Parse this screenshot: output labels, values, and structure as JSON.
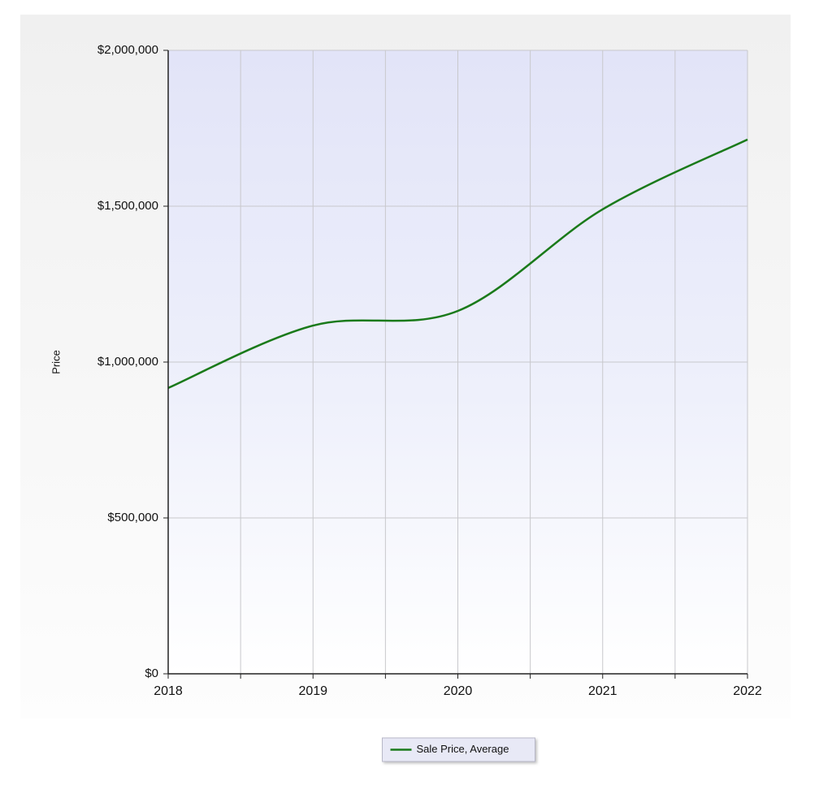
{
  "chart_data": {
    "type": "line",
    "ylabel": "Price",
    "x": [
      2018,
      2019,
      2020,
      2021,
      2022
    ],
    "series": [
      {
        "name": "Sale Price, Average",
        "color": "#1a7a1a",
        "values": [
          917000,
          1117000,
          1164000,
          1490000,
          1714000
        ]
      }
    ],
    "xlim": [
      2018,
      2022
    ],
    "xticks": [
      2018,
      2019,
      2020,
      2021,
      2022
    ],
    "ylim": [
      0,
      2000000
    ],
    "yticks": [
      {
        "value": 0,
        "label": "$0"
      },
      {
        "value": 500000,
        "label": "$500,000"
      },
      {
        "value": 1000000,
        "label": "$1,000,000"
      },
      {
        "value": 1500000,
        "label": "$1,500,000"
      },
      {
        "value": 2000000,
        "label": "$2,000,000"
      }
    ],
    "grid": true,
    "smooth": true,
    "legend": "bottom"
  }
}
